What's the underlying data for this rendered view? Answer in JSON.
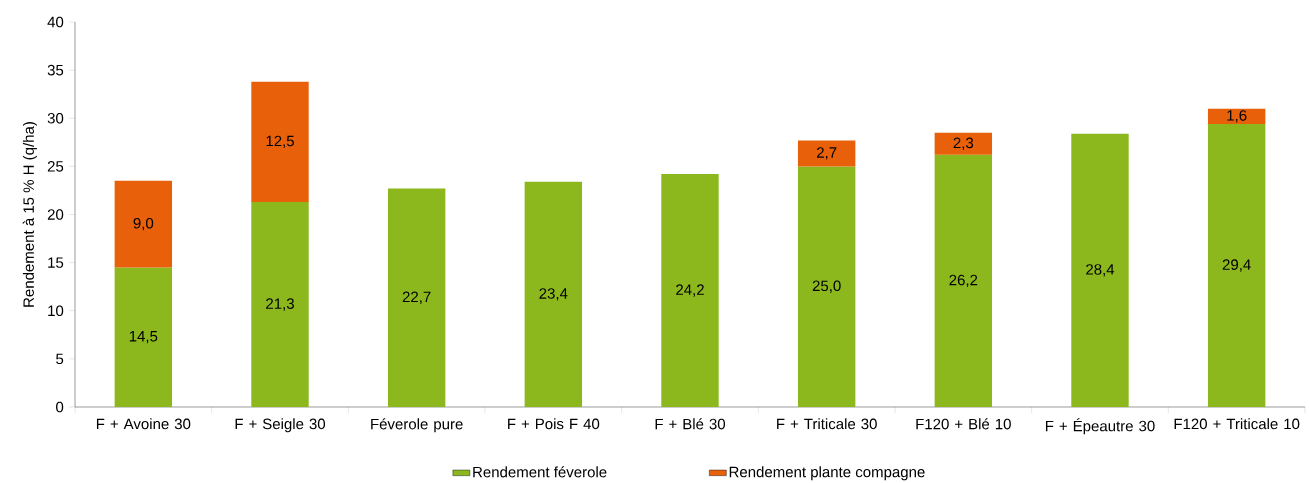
{
  "chart_data": {
    "type": "bar",
    "stacked": true,
    "ylabel": "Rendement à 15 % H (q/ha)",
    "categories": [
      "F + Avoine 30",
      "F + Seigle 30",
      "Féverole pure",
      "F + Pois F 40",
      "F + Blé 30",
      "F + Triticale 30",
      "F120 + Blé 10",
      "F + Épeautre 30",
      "F120 + Triticale 10"
    ],
    "series": [
      {
        "name": "Rendement féverole",
        "color": "#8cb81e",
        "values": [
          14.5,
          21.3,
          22.7,
          23.4,
          24.2,
          25.0,
          26.2,
          28.4,
          29.4
        ],
        "value_labels": [
          "14,5",
          "21,3",
          "22,7",
          "23,4",
          "24,2",
          "25,0",
          "26,2",
          "28,4",
          "29,4"
        ]
      },
      {
        "name": "Rendement plante compagne",
        "color": "#e8600a",
        "values": [
          9.0,
          12.5,
          null,
          null,
          null,
          2.7,
          2.3,
          null,
          1.6
        ],
        "value_labels": [
          "9,0",
          "12,5",
          null,
          null,
          null,
          "2,7",
          "2,3",
          null,
          "1,6"
        ]
      }
    ],
    "ylim": [
      0,
      40
    ],
    "yticks": [
      0,
      5,
      10,
      15,
      20,
      25,
      30,
      35,
      40
    ],
    "legend": "bottom"
  }
}
